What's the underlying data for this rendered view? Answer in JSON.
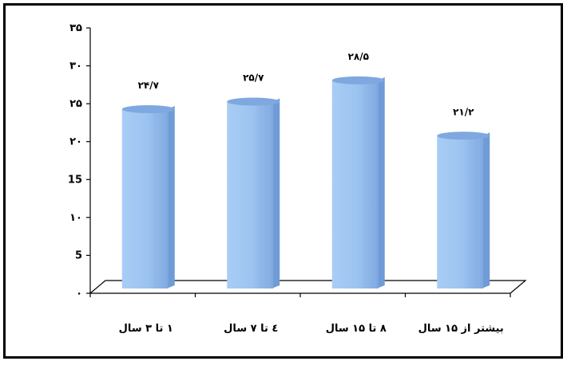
{
  "chart_data": {
    "type": "bar",
    "title": "",
    "xlabel": "",
    "ylabel": "",
    "categories": [
      "۱ تا ۳ سال",
      "٤ تا ۷ سال",
      "۸ تا ۱۵ سال",
      "بیشتر از ۱۵ سال"
    ],
    "values": [
      24.7,
      25.7,
      28.5,
      21.2
    ],
    "data_labels": [
      "۲۴/۷",
      "۲۵/۷",
      "۲۸/۵",
      "۲۱/۲"
    ],
    "y_ticks": [
      0,
      5,
      10,
      15,
      20,
      25,
      30,
      35
    ],
    "y_tick_labels": [
      "۰",
      "5",
      "۱۰",
      "15",
      "۲۰",
      "۲۵",
      "۳۰",
      "۳۵"
    ],
    "ylim": [
      0,
      35
    ],
    "grid": false,
    "legend": "none",
    "bar_color": "#9cc3f0",
    "bar_shade_color": "#6f9bd6",
    "bar_top_color": "#7ea8df"
  }
}
